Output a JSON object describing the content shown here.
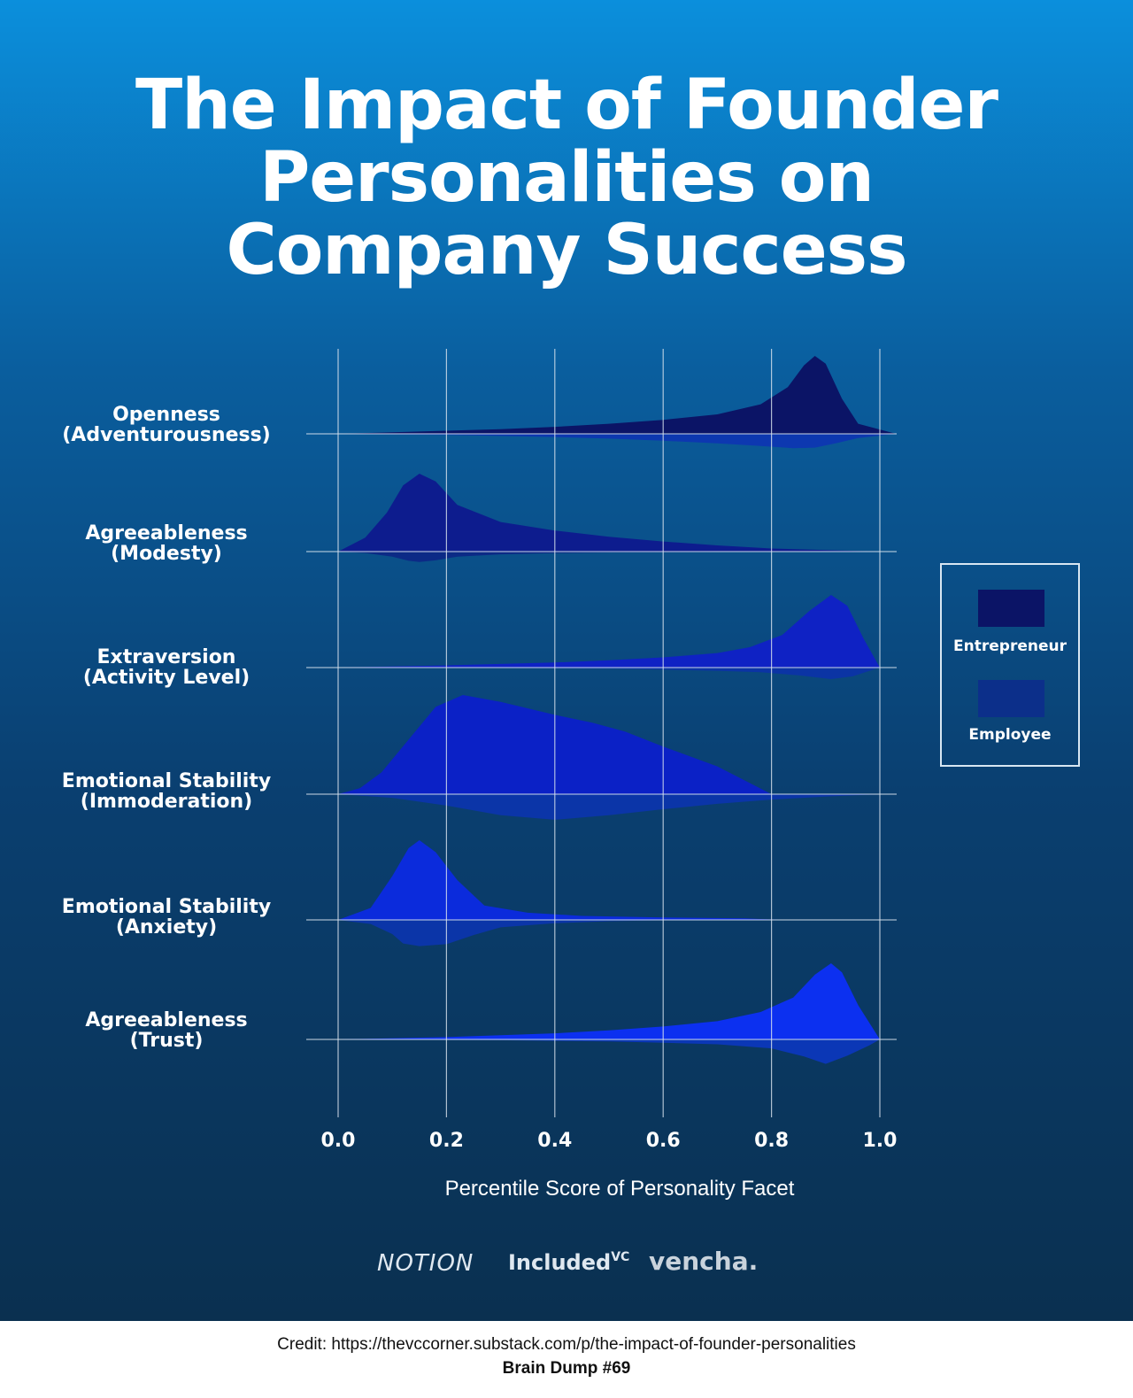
{
  "title": "The Impact of Founder Personalities on Company Success",
  "title_lines": [
    "The Impact of Founder",
    "Personalities on",
    "Company Success"
  ],
  "chart_data": {
    "type": "violin",
    "xlabel": "Percentile Score of Personality Facet",
    "xlim": [
      0,
      1
    ],
    "x_ticks": [
      "0.0",
      "0.2",
      "0.4",
      "0.6",
      "0.8",
      "1.0"
    ],
    "grid": true,
    "legend_position": "right",
    "legend": [
      {
        "name": "Entrepreneur",
        "color": "#0b1466"
      },
      {
        "name": "Employee",
        "color": "#0c2f8a"
      }
    ],
    "categories": [
      {
        "label_lines": [
          "Openness",
          "(Adventurousness)"
        ],
        "entrepreneur_color": "#0b1466",
        "employee_color": "#0d38b0",
        "entrepreneur": [
          [
            0.0,
            0
          ],
          [
            0.1,
            0.02
          ],
          [
            0.2,
            0.04
          ],
          [
            0.3,
            0.06
          ],
          [
            0.4,
            0.09
          ],
          [
            0.5,
            0.13
          ],
          [
            0.6,
            0.18
          ],
          [
            0.7,
            0.25
          ],
          [
            0.78,
            0.38
          ],
          [
            0.83,
            0.6
          ],
          [
            0.86,
            0.88
          ],
          [
            0.88,
            1.0
          ],
          [
            0.9,
            0.9
          ],
          [
            0.93,
            0.45
          ],
          [
            0.96,
            0.13
          ],
          [
            1.03,
            0
          ]
        ],
        "employee": [
          [
            0.0,
            0
          ],
          [
            0.1,
            0.02
          ],
          [
            0.2,
            0.04
          ],
          [
            0.3,
            0.08
          ],
          [
            0.4,
            0.12
          ],
          [
            0.5,
            0.18
          ],
          [
            0.6,
            0.26
          ],
          [
            0.7,
            0.36
          ],
          [
            0.78,
            0.46
          ],
          [
            0.84,
            0.54
          ],
          [
            0.88,
            0.52
          ],
          [
            0.92,
            0.35
          ],
          [
            0.96,
            0.16
          ],
          [
            1.03,
            0
          ]
        ]
      },
      {
        "label_lines": [
          "Agreeableness",
          "(Modesty)"
        ],
        "entrepreneur_color": "#0d1c8e",
        "employee_color": "#0c2a86",
        "entrepreneur": [
          [
            0.0,
            0
          ],
          [
            0.05,
            0.18
          ],
          [
            0.09,
            0.5
          ],
          [
            0.12,
            0.85
          ],
          [
            0.15,
            1.0
          ],
          [
            0.18,
            0.9
          ],
          [
            0.22,
            0.6
          ],
          [
            0.3,
            0.38
          ],
          [
            0.4,
            0.27
          ],
          [
            0.5,
            0.19
          ],
          [
            0.6,
            0.13
          ],
          [
            0.7,
            0.08
          ],
          [
            0.8,
            0.04
          ],
          [
            0.9,
            0.02
          ],
          [
            1.0,
            0
          ]
        ],
        "employee": [
          [
            0.0,
            0
          ],
          [
            0.05,
            0.06
          ],
          [
            0.1,
            0.22
          ],
          [
            0.13,
            0.4
          ],
          [
            0.15,
            0.45
          ],
          [
            0.18,
            0.38
          ],
          [
            0.22,
            0.22
          ],
          [
            0.3,
            0.12
          ],
          [
            0.4,
            0.07
          ],
          [
            0.5,
            0.04
          ],
          [
            0.6,
            0.03
          ],
          [
            0.7,
            0.02
          ],
          [
            0.8,
            0.01
          ],
          [
            1.0,
            0
          ]
        ]
      },
      {
        "label_lines": [
          "Extraversion",
          "(Activity Level)"
        ],
        "entrepreneur_color": "#0f22c4",
        "employee_color": "#0b34a4",
        "entrepreneur": [
          [
            0.0,
            0
          ],
          [
            0.2,
            0.03
          ],
          [
            0.4,
            0.07
          ],
          [
            0.5,
            0.1
          ],
          [
            0.6,
            0.14
          ],
          [
            0.7,
            0.2
          ],
          [
            0.76,
            0.28
          ],
          [
            0.82,
            0.45
          ],
          [
            0.87,
            0.78
          ],
          [
            0.91,
            1.0
          ],
          [
            0.94,
            0.85
          ],
          [
            0.97,
            0.4
          ],
          [
            1.0,
            0
          ]
        ],
        "employee": [
          [
            0.0,
            0
          ],
          [
            0.3,
            0.02
          ],
          [
            0.5,
            0.05
          ],
          [
            0.6,
            0.09
          ],
          [
            0.7,
            0.14
          ],
          [
            0.78,
            0.2
          ],
          [
            0.85,
            0.34
          ],
          [
            0.91,
            0.5
          ],
          [
            0.95,
            0.38
          ],
          [
            0.98,
            0.15
          ],
          [
            1.0,
            0
          ]
        ]
      },
      {
        "label_lines": [
          "Emotional Stability",
          "(Immoderation)"
        ],
        "entrepreneur_color": "#0b21c6",
        "employee_color": "#0b35a8",
        "entrepreneur": [
          [
            0.0,
            0
          ],
          [
            0.04,
            0.06
          ],
          [
            0.08,
            0.22
          ],
          [
            0.13,
            0.55
          ],
          [
            0.18,
            0.88
          ],
          [
            0.23,
            1.0
          ],
          [
            0.3,
            0.93
          ],
          [
            0.4,
            0.8
          ],
          [
            0.47,
            0.72
          ],
          [
            0.53,
            0.63
          ],
          [
            0.6,
            0.48
          ],
          [
            0.7,
            0.28
          ],
          [
            0.8,
            0.0
          ]
        ],
        "employee": [
          [
            0.0,
            0
          ],
          [
            0.1,
            0.12
          ],
          [
            0.2,
            0.38
          ],
          [
            0.3,
            0.7
          ],
          [
            0.4,
            0.85
          ],
          [
            0.5,
            0.7
          ],
          [
            0.6,
            0.5
          ],
          [
            0.7,
            0.32
          ],
          [
            0.8,
            0.18
          ],
          [
            0.9,
            0.08
          ],
          [
            1.0,
            0
          ]
        ]
      },
      {
        "label_lines": [
          "Emotional Stability",
          "(Anxiety)"
        ],
        "entrepreneur_color": "#0b2bdc",
        "employee_color": "#0b35a8",
        "entrepreneur": [
          [
            0.0,
            0
          ],
          [
            0.06,
            0.15
          ],
          [
            0.1,
            0.55
          ],
          [
            0.13,
            0.9
          ],
          [
            0.15,
            1.0
          ],
          [
            0.18,
            0.85
          ],
          [
            0.22,
            0.5
          ],
          [
            0.27,
            0.18
          ],
          [
            0.35,
            0.09
          ],
          [
            0.45,
            0.05
          ],
          [
            0.6,
            0.03
          ],
          [
            0.75,
            0.02
          ],
          [
            0.82,
            0.0
          ]
        ],
        "employee": [
          [
            0.0,
            0
          ],
          [
            0.06,
            0.12
          ],
          [
            0.1,
            0.42
          ],
          [
            0.12,
            0.7
          ],
          [
            0.15,
            0.78
          ],
          [
            0.2,
            0.72
          ],
          [
            0.25,
            0.45
          ],
          [
            0.3,
            0.22
          ],
          [
            0.4,
            0.1
          ],
          [
            0.5,
            0.04
          ],
          [
            0.6,
            0.01
          ],
          [
            0.7,
            0
          ]
        ]
      },
      {
        "label_lines": [
          "Agreeableness",
          "(Trust)"
        ],
        "entrepreneur_color": "#0c30f0",
        "employee_color": "#0b37b6",
        "entrepreneur": [
          [
            0.0,
            0
          ],
          [
            0.2,
            0.03
          ],
          [
            0.4,
            0.08
          ],
          [
            0.5,
            0.12
          ],
          [
            0.6,
            0.17
          ],
          [
            0.7,
            0.24
          ],
          [
            0.78,
            0.36
          ],
          [
            0.84,
            0.55
          ],
          [
            0.88,
            0.85
          ],
          [
            0.91,
            1.0
          ],
          [
            0.93,
            0.88
          ],
          [
            0.96,
            0.45
          ],
          [
            1.0,
            0
          ]
        ],
        "employee": [
          [
            0.0,
            0
          ],
          [
            0.3,
            0.02
          ],
          [
            0.5,
            0.05
          ],
          [
            0.6,
            0.08
          ],
          [
            0.7,
            0.12
          ],
          [
            0.8,
            0.22
          ],
          [
            0.86,
            0.42
          ],
          [
            0.9,
            0.6
          ],
          [
            0.94,
            0.4
          ],
          [
            0.98,
            0.15
          ],
          [
            1.0,
            0
          ]
        ]
      }
    ]
  },
  "logos": {
    "notion": "NOTION",
    "included": "Included",
    "included_sup": "VC",
    "vencha": "vencha."
  },
  "footer": {
    "credit": "Credit: https://thevccorner.substack.com/p/the-impact-of-founder-personalities",
    "brain_dump": "Brain Dump #69"
  }
}
